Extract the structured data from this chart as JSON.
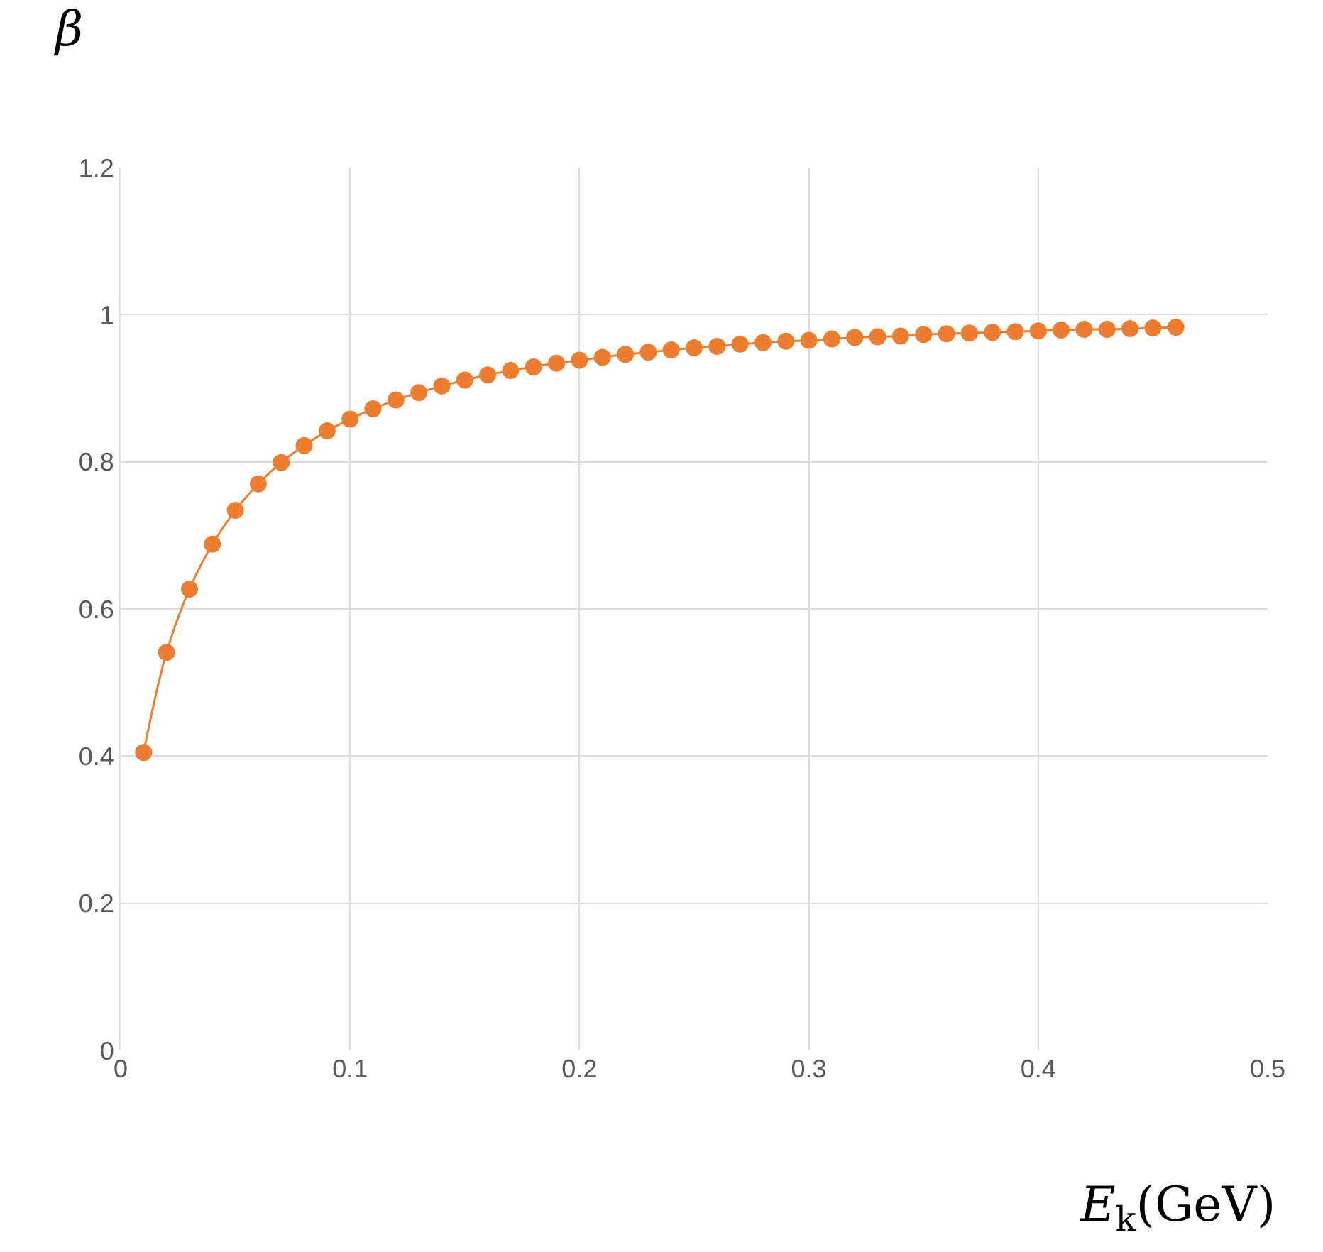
{
  "chart_data": {
    "type": "line",
    "xlabel": "E$_{k}$(GeV)",
    "ylabel": "β",
    "x": [
      0.01,
      0.02,
      0.03,
      0.04,
      0.05,
      0.06,
      0.07,
      0.08,
      0.09,
      0.1,
      0.11,
      0.12,
      0.13,
      0.14,
      0.15,
      0.16,
      0.17,
      0.18,
      0.19,
      0.2,
      0.21,
      0.22,
      0.23,
      0.24,
      0.25,
      0.26,
      0.27,
      0.28,
      0.29,
      0.3,
      0.31,
      0.32,
      0.33,
      0.34,
      0.35,
      0.36,
      0.37,
      0.38,
      0.39,
      0.4,
      0.41,
      0.42,
      0.43,
      0.44,
      0.45,
      0.46
    ],
    "series": [
      {
        "color": "#ed7d31",
        "values": [
          0.405,
          0.541,
          0.627,
          0.688,
          0.734,
          0.77,
          0.799,
          0.822,
          0.842,
          0.858,
          0.872,
          0.884,
          0.894,
          0.903,
          0.911,
          0.918,
          0.924,
          0.929,
          0.934,
          0.938,
          0.942,
          0.946,
          0.949,
          0.952,
          0.955,
          0.957,
          0.96,
          0.962,
          0.964,
          0.965,
          0.967,
          0.969,
          0.97,
          0.971,
          0.973,
          0.974,
          0.975,
          0.976,
          0.977,
          0.978,
          0.979,
          0.98,
          0.98,
          0.981,
          0.982,
          0.983
        ]
      }
    ],
    "xlim": [
      0,
      0.5
    ],
    "xticks": [
      0,
      0.1,
      0.2,
      0.3,
      0.4,
      0.5
    ],
    "ylim": [
      0,
      1.2
    ],
    "yticks": [
      0,
      0.2,
      0.4,
      0.6,
      0.8,
      1,
      1.2
    ],
    "grid": true,
    "marker": "circle",
    "line_style": "solid"
  }
}
